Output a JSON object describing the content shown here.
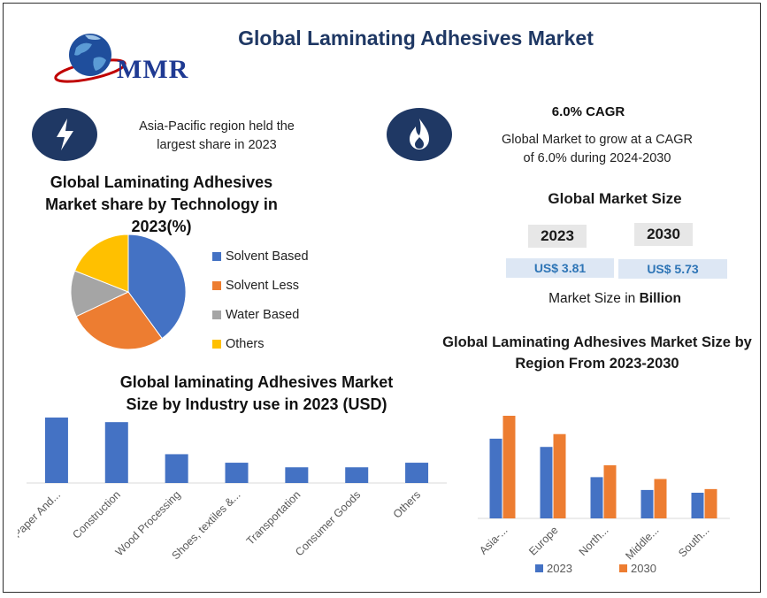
{
  "header": {
    "title": "Global Laminating Adhesives Market",
    "logo_text": "MMR"
  },
  "highlights": {
    "region_text_1": "Asia-Pacific region held the",
    "region_text_2": "largest share in 2023",
    "cagr_title": "6.0% CAGR",
    "cagr_text_1": "Global Market to grow at a CAGR",
    "cagr_text_2": "of 6.0% during 2024-2030"
  },
  "market_size": {
    "title": "Global Market Size",
    "year_1": "2023",
    "year_2": "2030",
    "value_1": "US$ 3.81",
    "value_2": "US$ 5.73",
    "caption_prefix": "Market Size in ",
    "caption_bold": "Billion"
  },
  "pie_section": {
    "title_1": "Global Laminating Adhesives",
    "title_2": "Market share by  Technology in",
    "title_3": "2023(%)"
  },
  "industry_section": {
    "title_1": "Global laminating Adhesives Market",
    "title_2": "Size by Industry use in 2023 (USD)"
  },
  "region_section": {
    "title_1": "Global Laminating Adhesives Market Size by",
    "title_2": "Region From 2023-2030"
  },
  "colors": {
    "blue": "#4472c4",
    "orange": "#ed7d31",
    "gray": "#a5a5a5",
    "yellow": "#ffc000",
    "navy": "#1f3864"
  },
  "icons": [
    "lightning-icon",
    "flame-icon",
    "globe-logo-icon"
  ],
  "chart_data": [
    {
      "type": "pie",
      "categories": [
        "Solvent Based",
        "Solvent Less",
        "Water Based",
        "Others"
      ],
      "values": [
        40,
        28,
        13,
        19
      ]
    },
    {
      "type": "bar",
      "categories": [
        "Paper And...",
        "Construction",
        "Wood Processing",
        "Shoes, textiles &...",
        "Transportation",
        "Consumer Goods",
        "Others"
      ],
      "values": [
        100,
        93,
        44,
        31,
        24,
        24,
        31
      ]
    },
    {
      "type": "bar",
      "categories": [
        "Asia-...",
        "Europe",
        "North...",
        "Middle...",
        "South..."
      ],
      "series": [
        {
          "name": "2023",
          "values": [
            87,
            78,
            45,
            31,
            28
          ]
        },
        {
          "name": "2030",
          "values": [
            112,
            92,
            58,
            43,
            32
          ]
        }
      ]
    }
  ]
}
